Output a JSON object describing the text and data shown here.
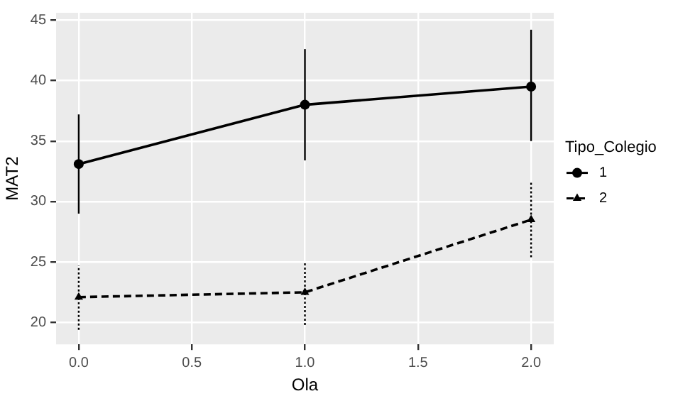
{
  "chart_data": {
    "type": "line",
    "xlabel": "Ola",
    "ylabel": "MAT2",
    "legend_title": "Tipo_Colegio",
    "legend": "right",
    "grid": true,
    "x": [
      0,
      1,
      2
    ],
    "xlim": [
      -0.1,
      2.1
    ],
    "xticks": [
      {
        "value": 0,
        "label": "0.0"
      },
      {
        "value": 0.5,
        "label": "0.5"
      },
      {
        "value": 1,
        "label": "1.0"
      },
      {
        "value": 1.5,
        "label": "1.5"
      },
      {
        "value": 2,
        "label": "2.0"
      }
    ],
    "ylim": [
      18.2,
      45.6
    ],
    "yticks": [
      20,
      25,
      30,
      35,
      40,
      45
    ],
    "series": [
      {
        "name": "1",
        "color": "#000000",
        "marker": "circle",
        "line_style": "solid",
        "values": [
          33.1,
          38.0,
          39.5
        ],
        "errors": [
          [
            29.0,
            37.2
          ],
          [
            33.4,
            42.6
          ],
          [
            35.0,
            44.2
          ]
        ]
      },
      {
        "name": "2",
        "color": "#000000",
        "marker": "triangle",
        "line_style": "dashed",
        "values": [
          22.1,
          22.5,
          28.5
        ],
        "errors": [
          [
            19.4,
            24.7
          ],
          [
            19.8,
            25.0
          ],
          [
            25.4,
            31.6
          ]
        ]
      }
    ]
  }
}
